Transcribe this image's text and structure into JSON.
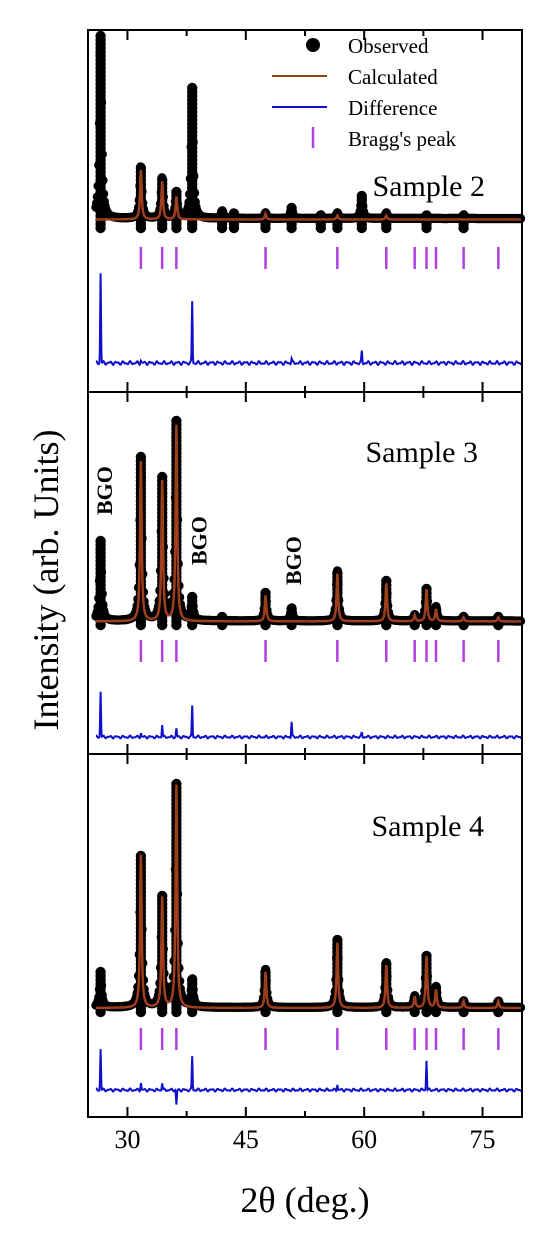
{
  "chart_data": {
    "type": "scatter",
    "ylabel": "Intensity (arb. Units)",
    "xlabel": "2θ (deg.)",
    "xlim": [
      25,
      80
    ],
    "x_ticks": [
      30,
      45,
      60,
      75
    ],
    "grid": false,
    "legend": {
      "placement": "top-right",
      "entries": [
        {
          "label": "Observed",
          "symbol": "circle",
          "color": "#000000"
        },
        {
          "label": "Calculated",
          "symbol": "line",
          "color": "#8B4513"
        },
        {
          "label": "Difference",
          "symbol": "line",
          "color": "#1010cc"
        },
        {
          "label": "Bragg's peak",
          "symbol": "tick",
          "color": "#b040e0"
        }
      ]
    },
    "colors": {
      "observed": "#000000",
      "calculated": "#8B4513",
      "calc_fill": "#c0392b",
      "difference": "#1010cc",
      "bragg": "#b040e0"
    },
    "bragg_positions": [
      31.7,
      34.4,
      36.2,
      47.5,
      56.6,
      62.8,
      66.4,
      67.9,
      69.1,
      72.6,
      77.0
    ],
    "panels": [
      {
        "label": "Sample 2",
        "baseline": 0.05,
        "peaks": [
          {
            "x": 26.6,
            "h": 1.0
          },
          {
            "x": 31.7,
            "h": 0.28
          },
          {
            "x": 34.4,
            "h": 0.22
          },
          {
            "x": 36.2,
            "h": 0.14
          },
          {
            "x": 38.2,
            "h": 0.7
          },
          {
            "x": 42.0,
            "h": 0.04
          },
          {
            "x": 43.5,
            "h": 0.03
          },
          {
            "x": 47.5,
            "h": 0.03
          },
          {
            "x": 50.8,
            "h": 0.06
          },
          {
            "x": 54.5,
            "h": 0.02
          },
          {
            "x": 56.6,
            "h": 0.03
          },
          {
            "x": 59.7,
            "h": 0.12
          },
          {
            "x": 62.8,
            "h": 0.03
          },
          {
            "x": 67.9,
            "h": 0.02
          },
          {
            "x": 72.6,
            "h": 0.02
          }
        ],
        "calc_peaks": [
          {
            "x": 31.7,
            "h": 0.26
          },
          {
            "x": 34.4,
            "h": 0.2
          },
          {
            "x": 36.2,
            "h": 0.12
          },
          {
            "x": 47.5,
            "h": 0.03
          },
          {
            "x": 56.6,
            "h": 0.02
          },
          {
            "x": 62.8,
            "h": 0.02
          }
        ],
        "difference_peaks": [
          {
            "x": 26.6,
            "h": 0.95
          },
          {
            "x": 38.2,
            "h": 0.65
          },
          {
            "x": 59.7,
            "h": 0.12
          },
          {
            "x": 50.8,
            "h": 0.05
          },
          {
            "x": 31.7,
            "h": 0.03
          }
        ],
        "annotations": []
      },
      {
        "label": "Sample 3",
        "baseline": 0.02,
        "peaks": [
          {
            "x": 26.6,
            "h": 0.4
          },
          {
            "x": 31.7,
            "h": 0.82
          },
          {
            "x": 34.4,
            "h": 0.72
          },
          {
            "x": 36.2,
            "h": 1.0
          },
          {
            "x": 38.2,
            "h": 0.12
          },
          {
            "x": 42.0,
            "h": 0.02
          },
          {
            "x": 47.5,
            "h": 0.14
          },
          {
            "x": 50.8,
            "h": 0.07
          },
          {
            "x": 56.6,
            "h": 0.25
          },
          {
            "x": 62.8,
            "h": 0.2
          },
          {
            "x": 66.4,
            "h": 0.03
          },
          {
            "x": 67.9,
            "h": 0.17
          },
          {
            "x": 69.1,
            "h": 0.07
          },
          {
            "x": 72.6,
            "h": 0.02
          },
          {
            "x": 77.0,
            "h": 0.02
          }
        ],
        "calc_peaks": [
          {
            "x": 31.7,
            "h": 0.8
          },
          {
            "x": 34.4,
            "h": 0.7
          },
          {
            "x": 36.2,
            "h": 0.98
          },
          {
            "x": 47.5,
            "h": 0.13
          },
          {
            "x": 56.6,
            "h": 0.24
          },
          {
            "x": 62.8,
            "h": 0.19
          },
          {
            "x": 66.4,
            "h": 0.03
          },
          {
            "x": 67.9,
            "h": 0.16
          },
          {
            "x": 69.1,
            "h": 0.06
          },
          {
            "x": 72.6,
            "h": 0.02
          },
          {
            "x": 77.0,
            "h": 0.02
          }
        ],
        "difference_peaks": [
          {
            "x": 26.6,
            "h": 0.65
          },
          {
            "x": 38.2,
            "h": 0.45
          },
          {
            "x": 50.8,
            "h": 0.22
          },
          {
            "x": 34.4,
            "h": 0.18
          },
          {
            "x": 36.2,
            "h": 0.12
          },
          {
            "x": 31.7,
            "h": 0.06
          },
          {
            "x": 59.7,
            "h": 0.06
          }
        ],
        "annotations": [
          {
            "text": "BGO",
            "x": 27.0,
            "h": 0.55
          },
          {
            "text": "BGO",
            "x": 39.0,
            "h": 0.3
          },
          {
            "text": "BGO",
            "x": 51.0,
            "h": 0.2
          }
        ]
      },
      {
        "label": "Sample 4",
        "baseline": 0.02,
        "peaks": [
          {
            "x": 26.6,
            "h": 0.16
          },
          {
            "x": 31.7,
            "h": 0.69
          },
          {
            "x": 34.4,
            "h": 0.5
          },
          {
            "x": 36.2,
            "h": 1.0
          },
          {
            "x": 38.2,
            "h": 0.13
          },
          {
            "x": 47.5,
            "h": 0.17
          },
          {
            "x": 56.6,
            "h": 0.3
          },
          {
            "x": 62.8,
            "h": 0.2
          },
          {
            "x": 66.4,
            "h": 0.05
          },
          {
            "x": 67.9,
            "h": 0.24
          },
          {
            "x": 69.1,
            "h": 0.09
          },
          {
            "x": 72.6,
            "h": 0.03
          },
          {
            "x": 77.0,
            "h": 0.03
          }
        ],
        "calc_peaks": [
          {
            "x": 31.7,
            "h": 0.68
          },
          {
            "x": 34.4,
            "h": 0.49
          },
          {
            "x": 36.2,
            "h": 0.99
          },
          {
            "x": 47.5,
            "h": 0.16
          },
          {
            "x": 56.6,
            "h": 0.29
          },
          {
            "x": 62.8,
            "h": 0.19
          },
          {
            "x": 66.4,
            "h": 0.05
          },
          {
            "x": 67.9,
            "h": 0.23
          },
          {
            "x": 69.1,
            "h": 0.08
          },
          {
            "x": 72.6,
            "h": 0.03
          },
          {
            "x": 77.0,
            "h": 0.03
          }
        ],
        "difference_peaks": [
          {
            "x": 26.6,
            "h": 0.55
          },
          {
            "x": 38.2,
            "h": 0.45
          },
          {
            "x": 67.9,
            "h": 0.4
          },
          {
            "x": 31.7,
            "h": 0.1
          },
          {
            "x": 34.4,
            "h": 0.1
          },
          {
            "x": 36.2,
            "h": -0.2
          },
          {
            "x": 56.6,
            "h": 0.08
          }
        ],
        "annotations": []
      }
    ]
  }
}
